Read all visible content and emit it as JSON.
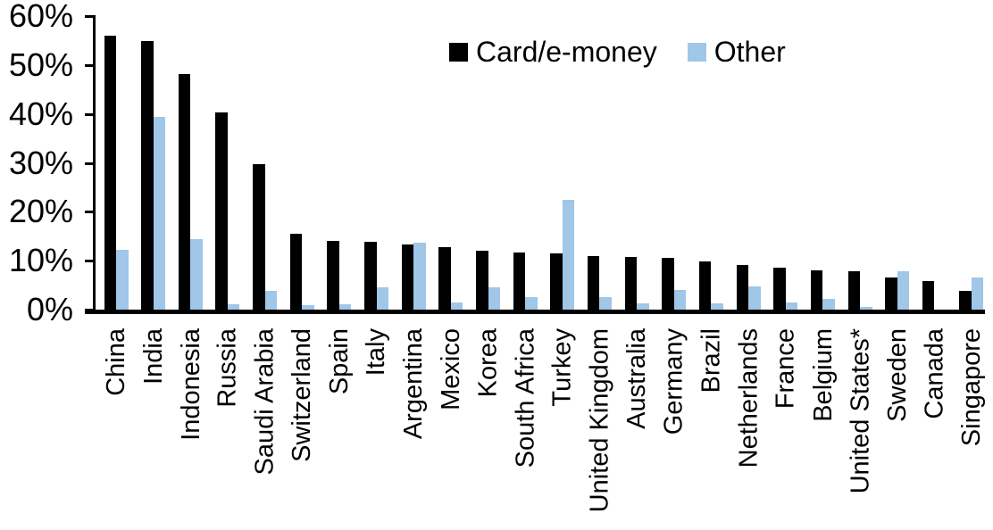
{
  "chart_data": {
    "type": "bar",
    "title": "",
    "xlabel": "",
    "ylabel": "",
    "ylim": [
      0,
      60
    ],
    "ytick_step": 10,
    "ytick_labels": [
      "0%",
      "10%",
      "20%",
      "30%",
      "40%",
      "50%",
      "60%"
    ],
    "grid": false,
    "legend_position": "top-center",
    "categories": [
      "China",
      "India",
      "Indonesia",
      "Russia",
      "Saudi Arabia",
      "Switzerland",
      "Spain",
      "Italy",
      "Argentina",
      "Mexico",
      "Korea",
      "South Africa",
      "Turkey",
      "United Kingdom",
      "Australia",
      "Germany",
      "Brazil",
      "Netherlands",
      "France",
      "Belgium",
      "United States*",
      "Sweden",
      "Canada",
      "Singapore"
    ],
    "series": [
      {
        "name": "Card/e-money",
        "color": "#000000",
        "values": [
          56.1,
          54.9,
          48.1,
          40.4,
          29.7,
          15.6,
          14.1,
          13.9,
          13.3,
          12.8,
          12.1,
          11.7,
          11.5,
          11.0,
          10.8,
          10.5,
          9.9,
          9.2,
          8.5,
          8.0,
          7.8,
          6.5,
          5.9,
          3.8
        ]
      },
      {
        "name": "Other",
        "color": "#A0C6E8",
        "values": [
          12.2,
          39.5,
          14.4,
          1.1,
          3.9,
          0.9,
          1.1,
          4.6,
          13.6,
          1.4,
          4.5,
          2.5,
          22.4,
          2.5,
          1.2,
          4.0,
          1.3,
          4.8,
          1.5,
          2.1,
          0.5,
          7.9,
          0,
          6.6
        ]
      }
    ]
  },
  "colors": {
    "axis": "#000000",
    "background": "#ffffff",
    "card_series": "#000000",
    "other_series": "#A0C6E8"
  }
}
